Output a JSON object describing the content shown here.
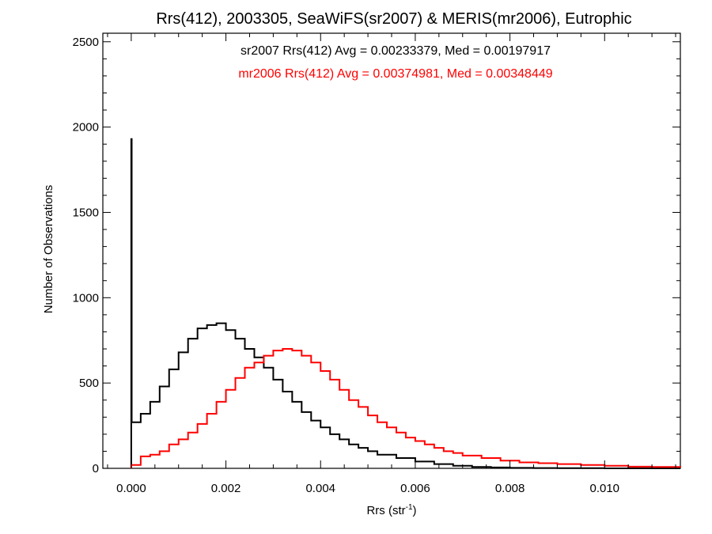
{
  "chart_data": {
    "type": "line",
    "style": "step-histogram",
    "title": "Rrs(412), 2003305, SeaWiFS(sr2007) & MERIS(mr2006), Eutrophic",
    "xlabel_main": "Rrs (str",
    "xlabel_sup": "-1",
    "xlabel_close": ")",
    "ylabel": "Number of Observations",
    "xlim": [
      -0.0006,
      0.0116
    ],
    "ylim": [
      0,
      2550
    ],
    "x_ticks": [
      0.0,
      0.002,
      0.004,
      0.006,
      0.008,
      0.01
    ],
    "x_tick_labels": [
      "0.000",
      "0.002",
      "0.004",
      "0.006",
      "0.008",
      "0.010"
    ],
    "y_ticks": [
      0,
      500,
      1000,
      1500,
      2000,
      2500
    ],
    "y_tick_labels": [
      "0",
      "500",
      "1000",
      "1500",
      "2000",
      "2500"
    ],
    "grid": false,
    "annotations": [
      {
        "text": "sr2007 Rrs(412) Avg = 0.00233379, Med = 0.00197917",
        "color": "#000000"
      },
      {
        "text": "mr2006 Rrs(412) Avg = 0.00374981, Med = 0.00348449",
        "color": "#ff0000"
      }
    ],
    "series": [
      {
        "color": "#000000",
        "x": [
          0.0,
          1e-05,
          0.0002,
          0.0004,
          0.0006,
          0.0008,
          0.001,
          0.0012,
          0.0014,
          0.0016,
          0.0018,
          0.002,
          0.0022,
          0.0024,
          0.0026,
          0.0028,
          0.003,
          0.0032,
          0.0034,
          0.0036,
          0.0038,
          0.004,
          0.0042,
          0.0044,
          0.0046,
          0.0048,
          0.005,
          0.0052,
          0.0056,
          0.006,
          0.0064,
          0.0068,
          0.0072,
          0.0076,
          0.008,
          0.0085,
          0.009,
          0.01,
          0.0116
        ],
        "y": [
          1930,
          270,
          320,
          390,
          480,
          580,
          680,
          760,
          820,
          840,
          850,
          810,
          760,
          700,
          650,
          590,
          520,
          450,
          390,
          330,
          280,
          240,
          200,
          170,
          140,
          120,
          100,
          80,
          60,
          40,
          25,
          15,
          8,
          5,
          3,
          2,
          1,
          0,
          0
        ]
      },
      {
        "color": "#ff0000",
        "x": [
          0.0,
          0.0002,
          0.0004,
          0.0006,
          0.0008,
          0.001,
          0.0012,
          0.0014,
          0.0016,
          0.0018,
          0.002,
          0.0022,
          0.0024,
          0.0026,
          0.0028,
          0.003,
          0.0032,
          0.0034,
          0.0036,
          0.0038,
          0.004,
          0.0042,
          0.0044,
          0.0046,
          0.0048,
          0.005,
          0.0052,
          0.0054,
          0.0056,
          0.0058,
          0.006,
          0.0062,
          0.0064,
          0.0066,
          0.0068,
          0.007,
          0.0074,
          0.0078,
          0.0082,
          0.0086,
          0.009,
          0.0095,
          0.01,
          0.0105,
          0.011,
          0.0116
        ],
        "y": [
          20,
          70,
          80,
          100,
          140,
          170,
          210,
          260,
          320,
          390,
          460,
          530,
          590,
          620,
          660,
          690,
          700,
          690,
          660,
          620,
          570,
          520,
          460,
          400,
          360,
          310,
          270,
          240,
          210,
          180,
          160,
          140,
          120,
          100,
          90,
          75,
          60,
          45,
          35,
          30,
          25,
          20,
          15,
          10,
          8,
          5
        ]
      }
    ]
  }
}
